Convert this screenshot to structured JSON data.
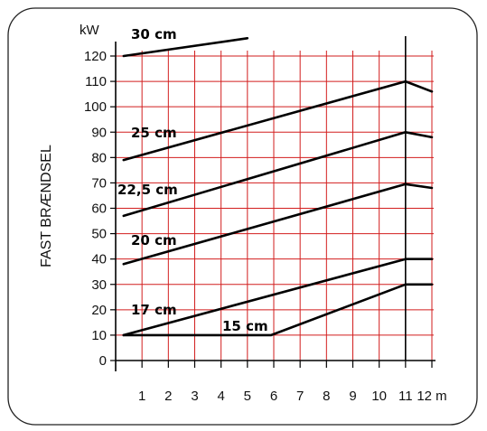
{
  "chart_data": {
    "type": "line",
    "side_label": "FAST BRÆNDSEL",
    "x_unit": "m",
    "y_unit": "kW",
    "xlim": [
      0,
      12
    ],
    "ylim": [
      0,
      120
    ],
    "x_tick_labels": [
      "1",
      "2",
      "3",
      "4",
      "5",
      "6",
      "7",
      "8",
      "9",
      "10",
      "11",
      "12 m"
    ],
    "y_tick_labels": [
      "0",
      "10",
      "20",
      "30",
      "40",
      "50",
      "60",
      "70",
      "80",
      "90",
      "100",
      "110",
      "120"
    ],
    "grid": true,
    "grid_color": "#d21e1e",
    "axis_color": "#000000",
    "line_color": "#000000",
    "series": [
      {
        "name": "30 cm",
        "points": [
          [
            0.3,
            120
          ],
          [
            5,
            127
          ]
        ]
      },
      {
        "name": "25 cm",
        "points": [
          [
            0.3,
            79
          ],
          [
            11,
            110
          ],
          [
            12,
            106
          ]
        ]
      },
      {
        "name": "22,5 cm",
        "points": [
          [
            0.3,
            57
          ],
          [
            11,
            90
          ],
          [
            12,
            88
          ]
        ]
      },
      {
        "name": "20 cm",
        "points": [
          [
            0.3,
            38
          ],
          [
            11,
            69.5
          ],
          [
            12,
            68
          ]
        ]
      },
      {
        "name": "17 cm",
        "points": [
          [
            0.3,
            10
          ],
          [
            11,
            40
          ],
          [
            12,
            40
          ]
        ]
      },
      {
        "name": "15 cm",
        "points": [
          [
            0.3,
            10
          ],
          [
            5.9,
            10
          ],
          [
            11,
            30
          ],
          [
            12,
            30
          ]
        ]
      }
    ]
  }
}
